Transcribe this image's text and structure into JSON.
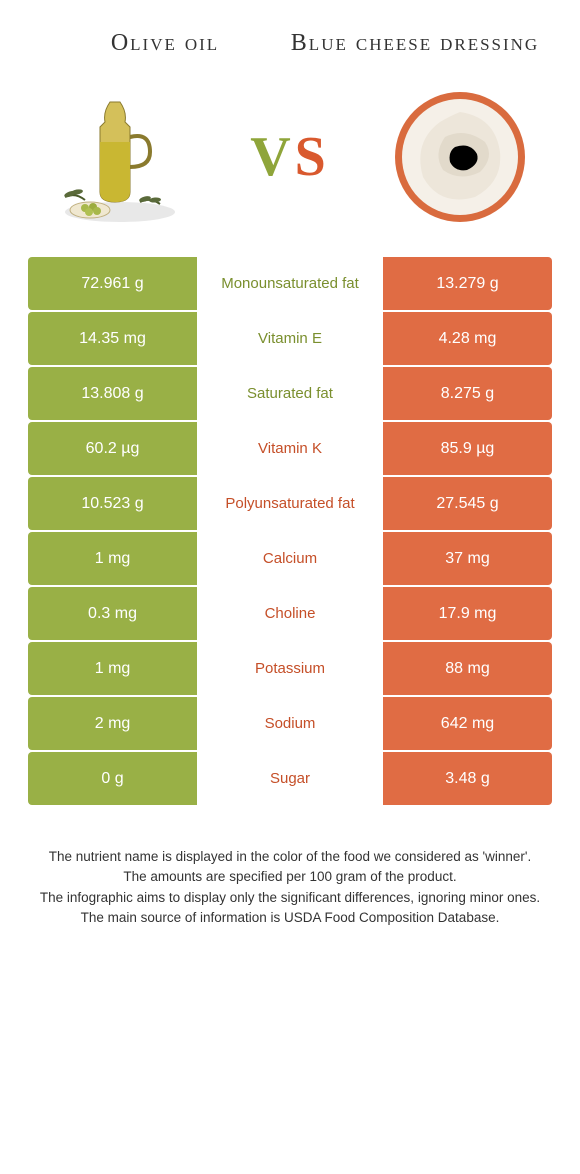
{
  "colors": {
    "left": "#99b046",
    "right": "#e06c44",
    "left_text": "#7a8f2e",
    "right_text": "#c54f28"
  },
  "header": {
    "left_title": "Olive oil",
    "right_title": "Blue cheese dressing",
    "vs_v": "V",
    "vs_s": "S"
  },
  "rows": [
    {
      "left": "72.961 g",
      "mid": "Monounsaturated fat",
      "right": "13.279 g",
      "winner": "left"
    },
    {
      "left": "14.35 mg",
      "mid": "Vitamin E",
      "right": "4.28 mg",
      "winner": "left"
    },
    {
      "left": "13.808 g",
      "mid": "Saturated fat",
      "right": "8.275 g",
      "winner": "left"
    },
    {
      "left": "60.2 µg",
      "mid": "Vitamin K",
      "right": "85.9 µg",
      "winner": "right"
    },
    {
      "left": "10.523 g",
      "mid": "Polyunsaturated fat",
      "right": "27.545 g",
      "winner": "right"
    },
    {
      "left": "1 mg",
      "mid": "Calcium",
      "right": "37 mg",
      "winner": "right"
    },
    {
      "left": "0.3 mg",
      "mid": "Choline",
      "right": "17.9 mg",
      "winner": "right"
    },
    {
      "left": "1 mg",
      "mid": "Potassium",
      "right": "88 mg",
      "winner": "right"
    },
    {
      "left": "2 mg",
      "mid": "Sodium",
      "right": "642 mg",
      "winner": "right"
    },
    {
      "left": "0 g",
      "mid": "Sugar",
      "right": "3.48 g",
      "winner": "right"
    }
  ],
  "footer": {
    "line1": "The nutrient name is displayed in the color of the food we considered as 'winner'.",
    "line2": "The amounts are specified per 100 gram of the product.",
    "line3": "The infographic aims to display only the significant differences, ignoring minor ones.",
    "line4": "The main source of information is USDA Food Composition Database."
  }
}
